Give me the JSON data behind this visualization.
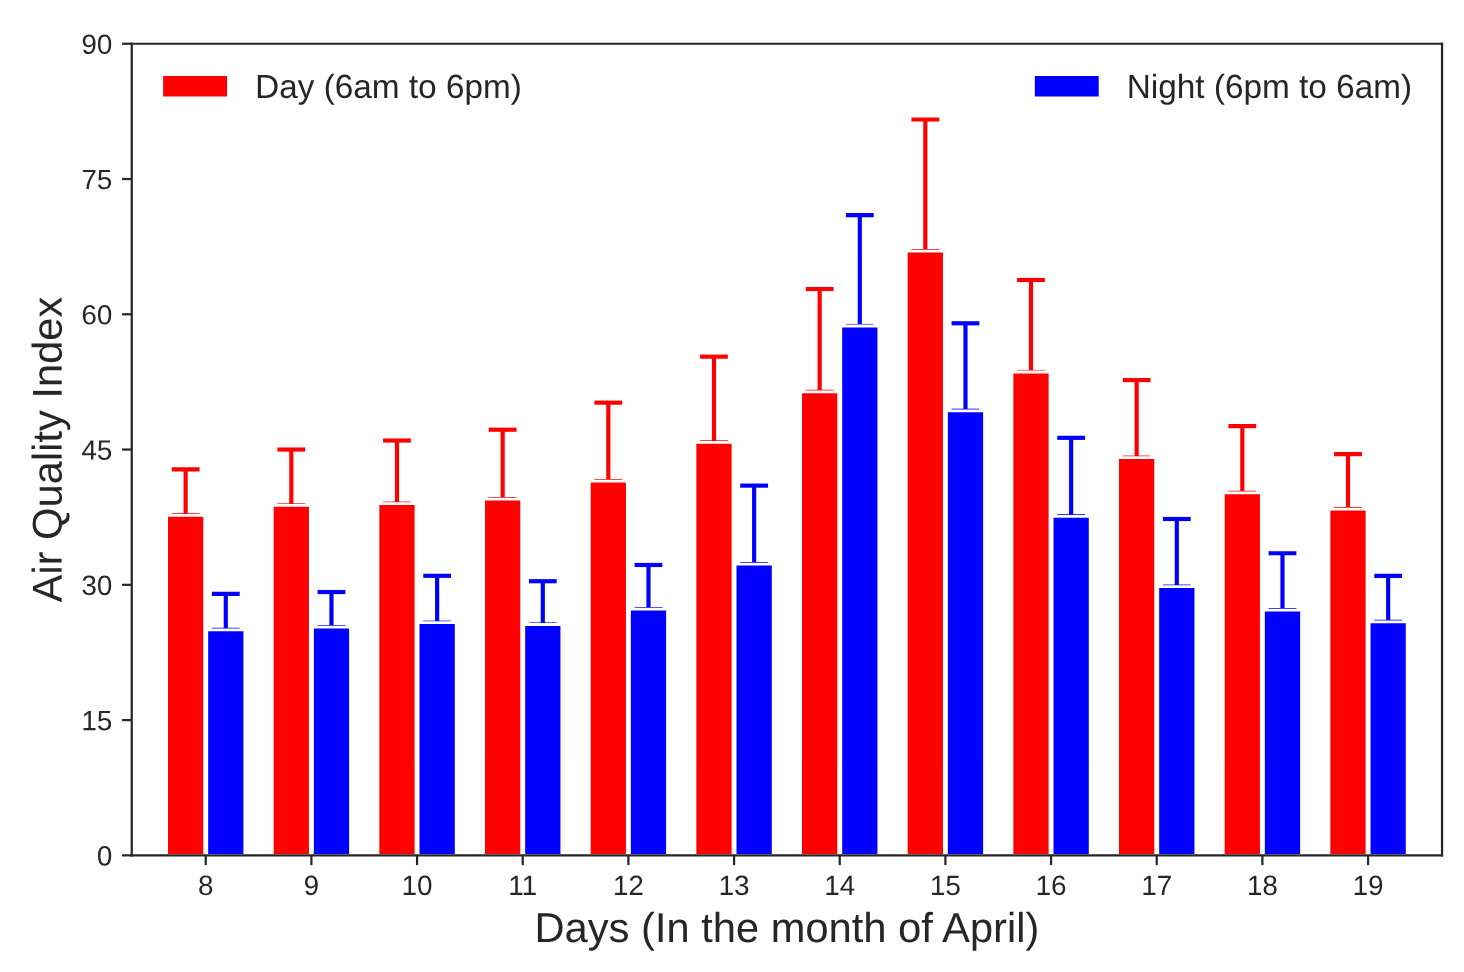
{
  "chart_data": {
    "type": "bar",
    "xlabel": "Days (In the month of April)",
    "ylabel": "Air Quality Index",
    "categories": [
      "8",
      "9",
      "10",
      "11",
      "12",
      "13",
      "14",
      "15",
      "16",
      "17",
      "18",
      "19"
    ],
    "series": [
      {
        "name": "Day (6am to 6pm)",
        "color": "#ff0000",
        "values": [
          37.7,
          38.8,
          39,
          39.5,
          41.5,
          45.8,
          51.4,
          67,
          53.6,
          44.1,
          40.2,
          38.4
        ],
        "errors": [
          [
            37.7,
            42.8
          ],
          [
            38.8,
            45
          ],
          [
            39,
            46
          ],
          [
            39.5,
            47.2
          ],
          [
            41.5,
            50.2
          ],
          [
            45.8,
            55.3
          ],
          [
            51.4,
            62.8
          ],
          [
            67,
            81.6
          ],
          [
            53.6,
            63.8
          ],
          [
            44.1,
            52.7
          ],
          [
            40.2,
            47.6
          ],
          [
            38.4,
            44.5
          ]
        ]
      },
      {
        "name": "Night (6pm to 6am)",
        "color": "#0000ff",
        "values": [
          25,
          25.3,
          25.8,
          25.6,
          27.3,
          32.3,
          58.7,
          49.3,
          37.6,
          29.8,
          27.2,
          25.9
        ],
        "errors": [
          [
            25,
            29
          ],
          [
            25.3,
            29.2
          ],
          [
            25.8,
            31
          ],
          [
            25.6,
            30.4
          ],
          [
            27.3,
            32.2
          ],
          [
            32.3,
            41
          ],
          [
            58.7,
            71
          ],
          [
            49.3,
            59
          ],
          [
            37.6,
            46.3
          ],
          [
            29.8,
            37.3
          ],
          [
            27.2,
            33.5
          ],
          [
            25.9,
            31
          ]
        ]
      }
    ],
    "ylim": [
      0,
      90
    ],
    "yticks": [
      0,
      15,
      30,
      45,
      60,
      75,
      90
    ],
    "grid": false,
    "legend": "top"
  }
}
